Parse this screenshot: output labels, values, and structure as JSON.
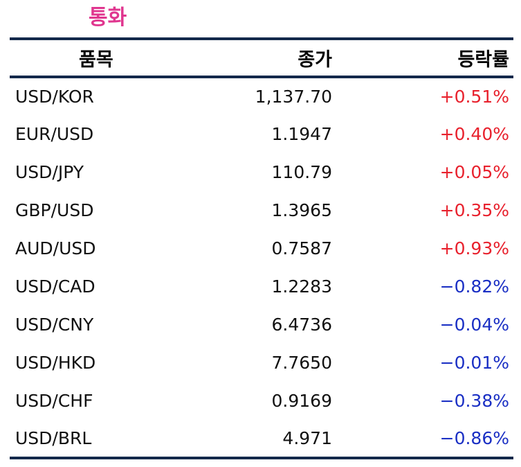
{
  "title": "통화",
  "header": {
    "name": "품목",
    "close": "종가",
    "change": "등락률"
  },
  "colors": {
    "title": "#e0368f",
    "rule": "#13294b",
    "up": "#e8212d",
    "down": "#1a2fc4"
  },
  "rows": [
    {
      "name": "USD/KOR",
      "close": "1,137.70",
      "change": "+0.51%",
      "dir": "up"
    },
    {
      "name": "EUR/USD",
      "close": "1.1947",
      "change": "+0.40%",
      "dir": "up"
    },
    {
      "name": "USD/JPY",
      "close": "110.79",
      "change": "+0.05%",
      "dir": "up"
    },
    {
      "name": "GBP/USD",
      "close": "1.3965",
      "change": "+0.35%",
      "dir": "up"
    },
    {
      "name": "AUD/USD",
      "close": "0.7587",
      "change": "+0.93%",
      "dir": "up"
    },
    {
      "name": "USD/CAD",
      "close": "1.2283",
      "change": "−0.82%",
      "dir": "down"
    },
    {
      "name": "USD/CNY",
      "close": "6.4736",
      "change": "−0.04%",
      "dir": "down"
    },
    {
      "name": "USD/HKD",
      "close": "7.7650",
      "change": "−0.01%",
      "dir": "down"
    },
    {
      "name": "USD/CHF",
      "close": "0.9169",
      "change": "−0.38%",
      "dir": "down"
    },
    {
      "name": "USD/BRL",
      "close": "4.971",
      "change": "−0.86%",
      "dir": "down"
    }
  ]
}
